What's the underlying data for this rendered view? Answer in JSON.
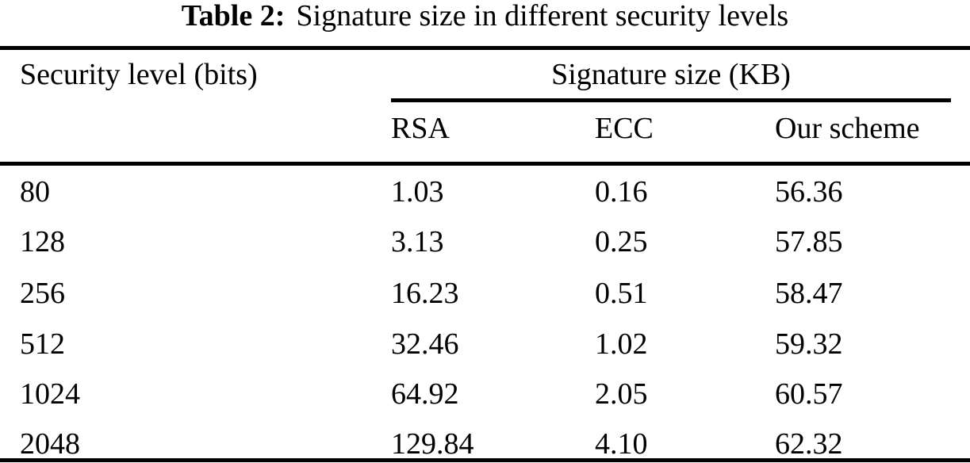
{
  "caption": {
    "label": "Table 2:",
    "text": "Signature size in different security levels"
  },
  "table": {
    "row_header_column": "Security level (bits)",
    "group_header": "Signature size (KB)",
    "columns": [
      "RSA",
      "ECC",
      "Our scheme"
    ],
    "rows": [
      {
        "level": "80",
        "rsa": "1.03",
        "ecc": "0.16",
        "our_scheme": "56.36"
      },
      {
        "level": "128",
        "rsa": "3.13",
        "ecc": "0.25",
        "our_scheme": "57.85"
      },
      {
        "level": "256",
        "rsa": "16.23",
        "ecc": "0.51",
        "our_scheme": "58.47"
      },
      {
        "level": "512",
        "rsa": "32.46",
        "ecc": "1.02",
        "our_scheme": "59.32"
      },
      {
        "level": "1024",
        "rsa": "64.92",
        "ecc": "2.05",
        "our_scheme": "60.57"
      },
      {
        "level": "2048",
        "rsa": "129.84",
        "ecc": "4.10",
        "our_scheme": "62.32"
      }
    ]
  },
  "colors": {
    "background": "#ffffff",
    "text": "#000000",
    "rule": "#000000"
  }
}
